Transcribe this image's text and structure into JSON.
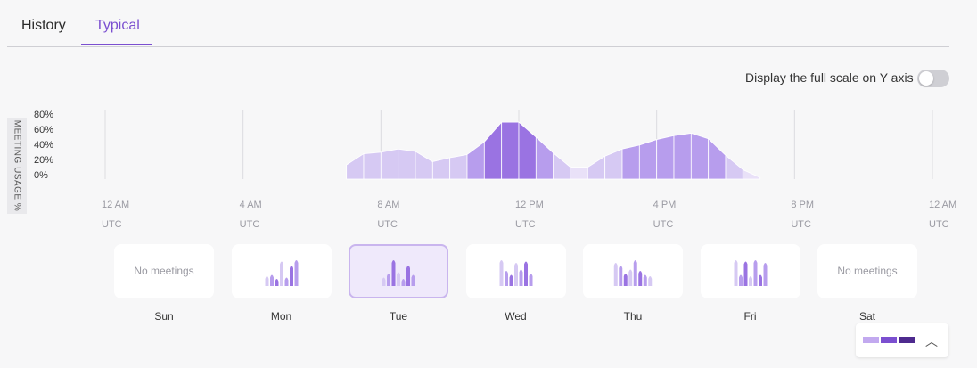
{
  "tabs": [
    {
      "label": "History",
      "active": false
    },
    {
      "label": "Typical",
      "active": true
    }
  ],
  "scale_toggle": {
    "label": "Display the full scale on Y axis",
    "on": false
  },
  "chart_data": {
    "type": "area",
    "ylabel": "MEETING USAGE %",
    "yticks": [
      "80%",
      "60%",
      "40%",
      "20%",
      "0%"
    ],
    "xticks": [
      {
        "time": "12 AM",
        "tz": "UTC"
      },
      {
        "time": "4 AM",
        "tz": "UTC"
      },
      {
        "time": "8 AM",
        "tz": "UTC"
      },
      {
        "time": "12 PM",
        "tz": "UTC"
      },
      {
        "time": "4 PM",
        "tz": "UTC"
      },
      {
        "time": "8 PM",
        "tz": "UTC"
      },
      {
        "time": "12 AM",
        "tz": "UTC"
      }
    ],
    "x_hours": [
      7.0,
      7.5,
      8.0,
      8.5,
      9.0,
      9.5,
      10.0,
      10.5,
      11.0,
      11.5,
      12.0,
      12.5,
      13.0,
      13.5,
      14.0,
      14.5,
      15.0,
      15.5,
      16.0,
      16.5,
      17.0,
      17.5,
      18.0,
      18.5,
      19.0
    ],
    "values": [
      18,
      32,
      34,
      38,
      35,
      22,
      27,
      31,
      47,
      72,
      72,
      53,
      33,
      15,
      15,
      29,
      38,
      43,
      50,
      55,
      58,
      51,
      30,
      12,
      2
    ],
    "colors": [
      "#e9e1f8",
      "#d6c9f3",
      "#b79ded",
      "#9a73e2"
    ]
  },
  "days": [
    {
      "label": "Sun",
      "empty_text": "No meetings",
      "selected": false,
      "bars": []
    },
    {
      "label": "Mon",
      "empty_text": "",
      "selected": false,
      "bars": [
        0.4,
        0.45,
        0.3,
        0.95,
        0.35,
        0.8,
        1.0
      ]
    },
    {
      "label": "Tue",
      "empty_text": "",
      "selected": true,
      "bars": [
        0.35,
        0.5,
        1.0,
        0.55,
        0.3,
        0.8,
        0.45
      ]
    },
    {
      "label": "Wed",
      "empty_text": "",
      "selected": false,
      "bars": [
        1.0,
        0.6,
        0.45,
        0.9,
        0.65,
        0.95,
        0.5
      ]
    },
    {
      "label": "Thu",
      "empty_text": "",
      "selected": false,
      "bars": [
        0.9,
        0.8,
        0.5,
        0.65,
        1.0,
        0.6,
        0.45,
        0.4
      ]
    },
    {
      "label": "Fri",
      "empty_text": "",
      "selected": false,
      "bars": [
        1.0,
        0.45,
        0.95,
        0.4,
        1.0,
        0.45,
        0.9
      ]
    },
    {
      "label": "Sat",
      "empty_text": "No meetings",
      "selected": false,
      "bars": []
    }
  ],
  "legend": {
    "swatches": [
      "#c2a9ef",
      "#7b4fd0",
      "#4e2a8e"
    ]
  }
}
